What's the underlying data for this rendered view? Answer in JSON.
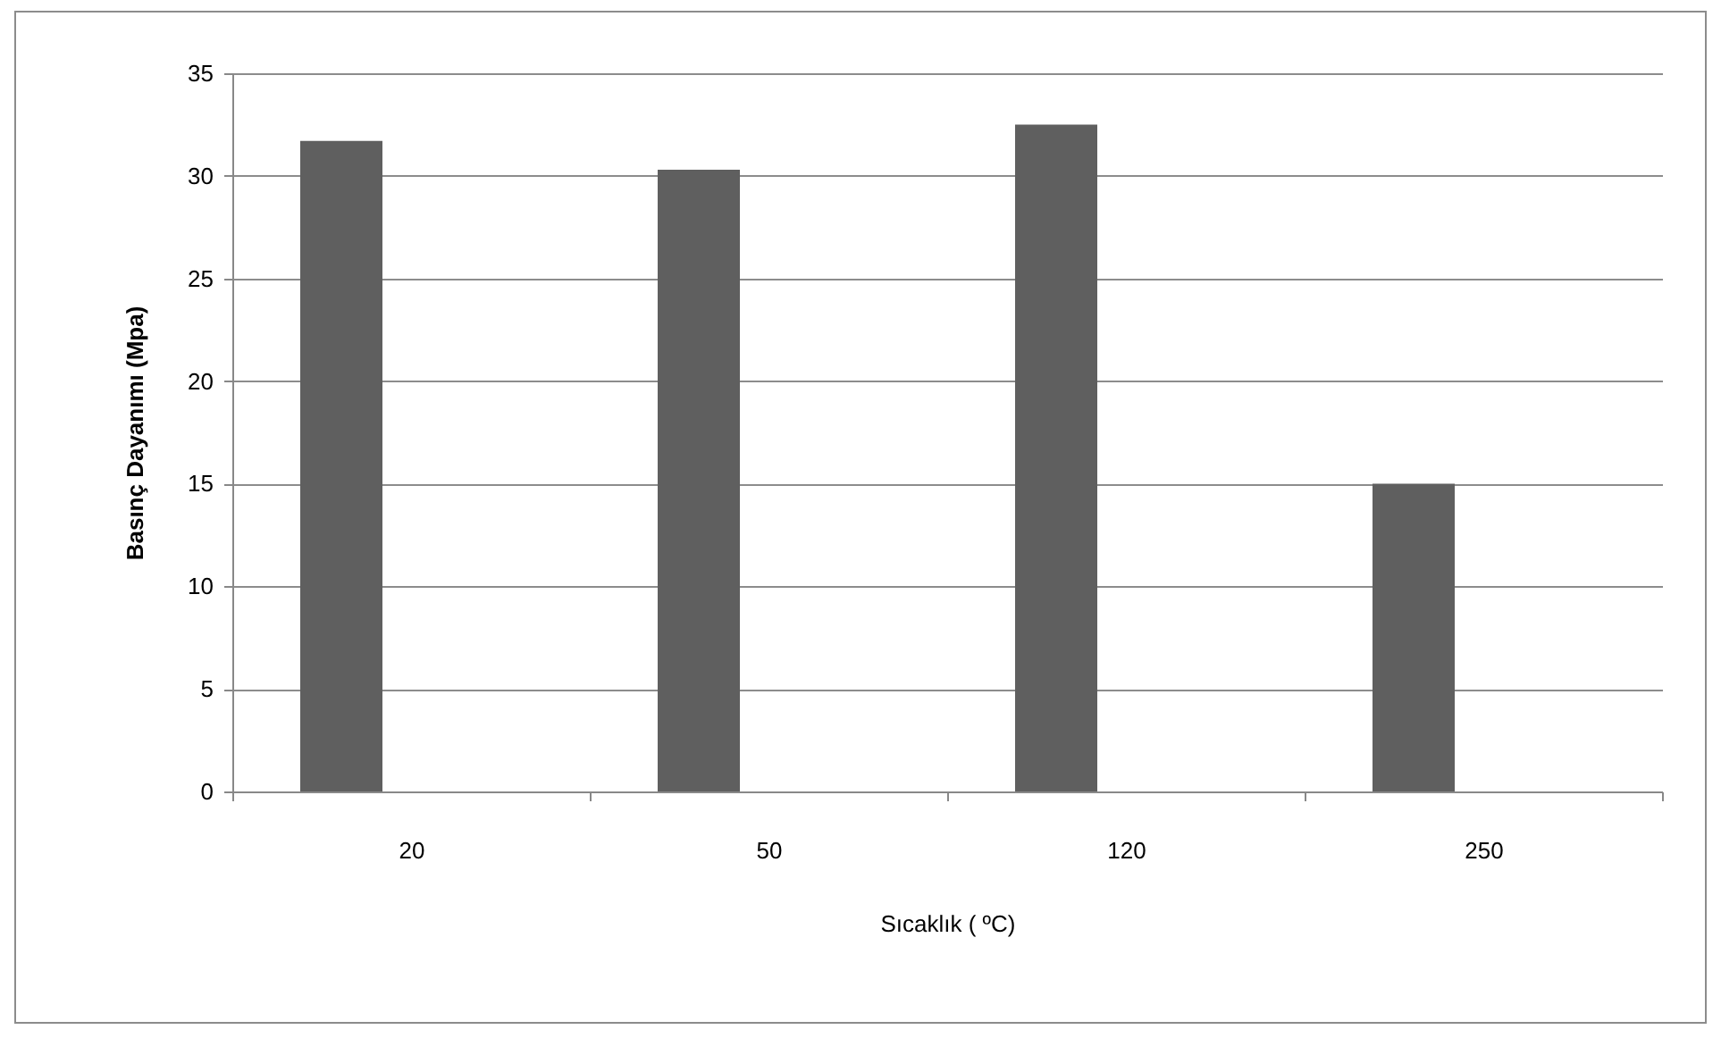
{
  "chart_data": {
    "type": "bar",
    "xlabel": "Sıcaklık ( ºC)",
    "ylabel": "Basınç Dayanımı (Mpa)",
    "categories": [
      "20",
      "50",
      "120",
      "250"
    ],
    "values": [
      31.7,
      30.3,
      32.5,
      15.0
    ],
    "color": "#5f5f5f",
    "ylim": [
      0,
      35
    ],
    "yticks": [
      0,
      5,
      10,
      15,
      20,
      25,
      30,
      35
    ],
    "grid": "y"
  }
}
